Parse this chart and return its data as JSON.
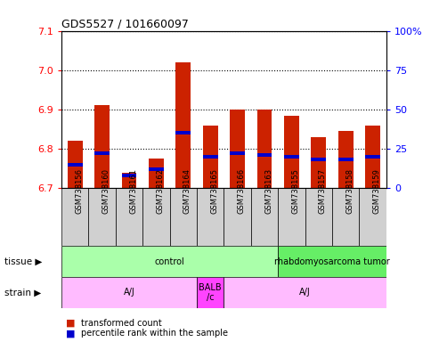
{
  "title": "GDS5527 / 101660097",
  "samples": [
    "GSM738156",
    "GSM738160",
    "GSM738161",
    "GSM738162",
    "GSM738164",
    "GSM738165",
    "GSM738166",
    "GSM738163",
    "GSM738155",
    "GSM738157",
    "GSM738158",
    "GSM738159"
  ],
  "bar_values": [
    6.82,
    6.91,
    6.74,
    6.775,
    7.02,
    6.86,
    6.9,
    6.9,
    6.885,
    6.83,
    6.845,
    6.86
  ],
  "percentile_values": [
    15,
    22,
    8,
    12,
    35,
    20,
    22,
    21,
    20,
    18,
    18,
    20
  ],
  "ymin": 6.7,
  "ymax": 7.1,
  "yticks": [
    6.7,
    6.8,
    6.9,
    7.0,
    7.1
  ],
  "right_yticks": [
    0,
    25,
    50,
    75,
    100
  ],
  "bar_color": "#cc2200",
  "percentile_color": "#0000cc",
  "tissue_groups": [
    {
      "label": "control",
      "start": 0,
      "end": 8,
      "color": "#aaffaa"
    },
    {
      "label": "rhabdomyosarcoma tumor",
      "start": 8,
      "end": 12,
      "color": "#66ee66"
    }
  ],
  "strain_groups": [
    {
      "label": "A/J",
      "start": 0,
      "end": 5,
      "color": "#ffbbff"
    },
    {
      "label": "BALB\n/c",
      "start": 5,
      "end": 6,
      "color": "#ff44ff"
    },
    {
      "label": "A/J",
      "start": 6,
      "end": 12,
      "color": "#ffbbff"
    }
  ],
  "tissue_label": "tissue",
  "strain_label": "strain",
  "legend_items": [
    {
      "label": "transformed count",
      "color": "#cc2200"
    },
    {
      "label": "percentile rank within the sample",
      "color": "#0000cc"
    }
  ],
  "background_color": "#ffffff"
}
